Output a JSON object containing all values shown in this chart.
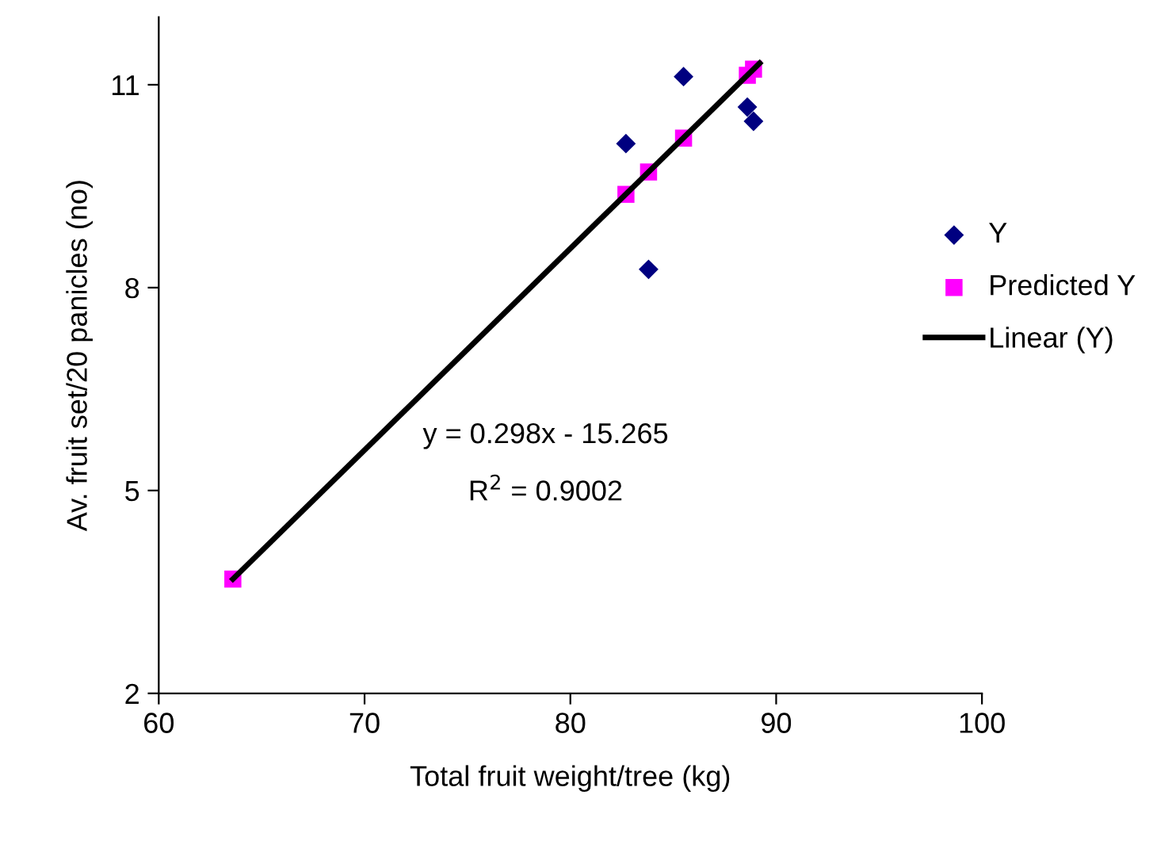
{
  "chart_data": {
    "type": "scatter",
    "xlabel": "Total fruit weight/tree (kg)",
    "ylabel": "Av. fruit set/20 panicles (no)",
    "xlim": [
      60,
      100
    ],
    "xticks": [
      60,
      70,
      80,
      90,
      100
    ],
    "ylim": [
      2,
      12
    ],
    "yticks": [
      2,
      5,
      8,
      11
    ],
    "grid": false,
    "legend": "right",
    "series": [
      {
        "name": "Y",
        "marker": "diamond",
        "color": "#000080",
        "x": [
          85.5,
          82.7,
          83.8,
          88.6,
          88.9
        ],
        "values": [
          11.12,
          10.13,
          8.27,
          10.67,
          10.46
        ]
      },
      {
        "name": "Predicted Y",
        "marker": "square",
        "color": "#ff00ff",
        "x": [
          63.6,
          82.7,
          83.8,
          85.5,
          88.6,
          88.9
        ],
        "values": [
          3.69,
          9.38,
          9.71,
          10.21,
          11.14,
          11.23
        ]
      },
      {
        "name": "Linear (Y)",
        "type": "line",
        "marker": "none",
        "line_style": "solid",
        "color": "#000000",
        "x": [
          63.6,
          89.2
        ],
        "values": [
          3.69,
          11.32
        ]
      }
    ],
    "annotations": [
      {
        "text": "y = 0.298x - 15.265"
      },
      {
        "text": "R$^{2}$ = 0.9002"
      }
    ]
  }
}
